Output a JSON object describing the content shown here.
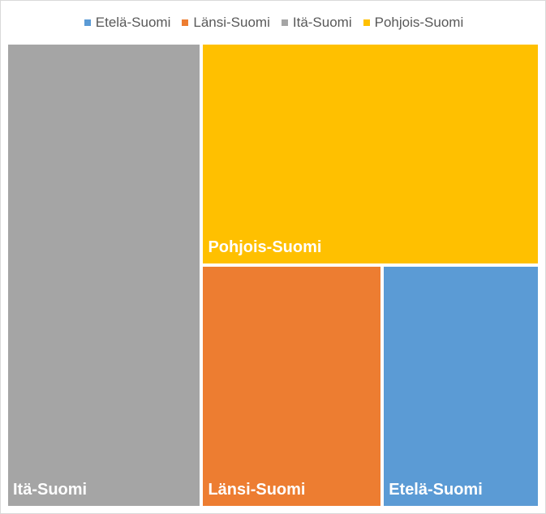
{
  "chart_data": {
    "type": "treemap",
    "title": "",
    "legend_position": "top",
    "legend": [
      {
        "name": "Etelä-Suomi",
        "color": "#5b9bd5"
      },
      {
        "name": "Länsi-Suomi",
        "color": "#ed7d31"
      },
      {
        "name": "Itä-Suomi",
        "color": "#a5a5a5"
      },
      {
        "name": "Pohjois-Suomi",
        "color": "#ffc000"
      }
    ],
    "items": [
      {
        "name": "Itä-Suomi",
        "value": 36.6,
        "color": "#a5a5a5"
      },
      {
        "name": "Pohjois-Suomi",
        "value": 30.3,
        "color": "#ffc000"
      },
      {
        "name": "Länsi-Suomi",
        "value": 17.7,
        "color": "#ed7d31"
      },
      {
        "name": "Etelä-Suomi",
        "value": 15.4,
        "color": "#5b9bd5"
      }
    ]
  }
}
